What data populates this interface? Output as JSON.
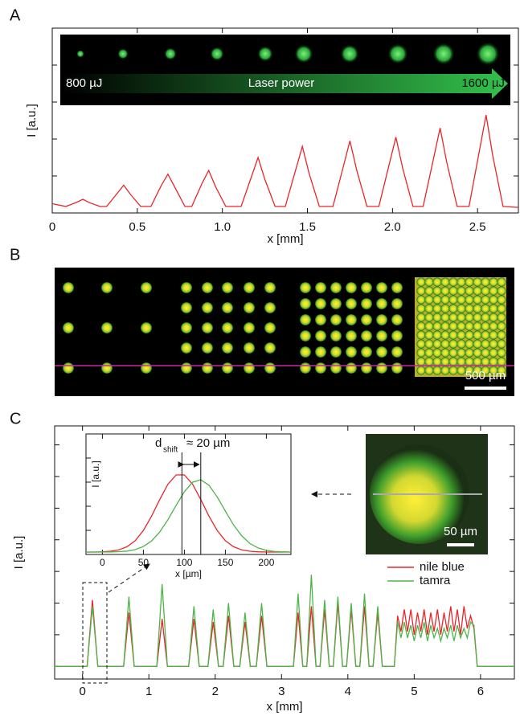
{
  "chart_data": [
    {
      "type": "line",
      "panel": "A",
      "xlabel": "x [mm]",
      "ylabel": "I [a.u.]",
      "image_labels": [
        "800 µJ",
        "Laser power",
        "1600 µJ"
      ],
      "xlim": [
        0,
        2.74
      ],
      "xticks": [
        0,
        0.5,
        {
          "value": 1,
          "label": "1.0"
        },
        1.5,
        {
          "value": 2,
          "label": "2.0"
        },
        2.5
      ],
      "ylim": [
        0,
        10
      ],
      "yticks": [
        0,
        2,
        4,
        6,
        8
      ],
      "color": "#e8262a",
      "x": [
        0,
        0.08,
        0.14,
        0.18,
        0.22,
        0.28,
        0.32,
        0.38,
        0.42,
        0.46,
        0.52,
        0.58,
        0.64,
        0.68,
        0.72,
        0.78,
        0.82,
        0.88,
        0.92,
        0.96,
        1.02,
        1.11,
        1.17,
        1.21,
        1.25,
        1.31,
        1.37,
        1.43,
        1.47,
        1.51,
        1.57,
        1.65,
        1.71,
        1.75,
        1.79,
        1.85,
        1.92,
        1.98,
        2.02,
        2.06,
        2.12,
        2.18,
        2.24,
        2.28,
        2.32,
        2.38,
        2.45,
        2.51,
        2.55,
        2.59,
        2.65,
        2.74
      ],
      "values": [
        0.5,
        0.35,
        0.56,
        0.74,
        0.55,
        0.35,
        0.35,
        1.04,
        1.5,
        1.0,
        0.35,
        0.35,
        1.47,
        2.1,
        1.4,
        0.35,
        0.35,
        1.59,
        2.3,
        1.42,
        0.35,
        0.35,
        1.94,
        3.0,
        1.81,
        0.35,
        0.35,
        2.3,
        3.6,
        2.14,
        0.35,
        0.35,
        2.48,
        3.9,
        2.3,
        0.35,
        0.35,
        2.6,
        4.1,
        2.41,
        0.35,
        0.35,
        2.9,
        4.6,
        2.69,
        0.35,
        0.35,
        3.32,
        5.3,
        3.07,
        0.35,
        0.3
      ]
    },
    {
      "type": "image",
      "panel": "B",
      "scale_bar": "500 µm"
    },
    {
      "type": "line",
      "panel": "C",
      "xlabel": "x [mm]",
      "ylabel": "I [a.u.]",
      "scale_bar": "50 µm",
      "xlim": [
        -0.42,
        6.51
      ],
      "xticks": [
        0,
        1,
        2,
        3,
        4,
        5,
        6
      ],
      "ylim": [
        -0.4,
        7.6
      ],
      "yticks": [
        0,
        1,
        2,
        3,
        4,
        5,
        6,
        7
      ],
      "x": [
        -0.42,
        0.07,
        0.15,
        0.23,
        0.62,
        0.7,
        0.78,
        1.12,
        1.2,
        1.28,
        1.6,
        1.68,
        1.76,
        1.89,
        1.97,
        2.05,
        2.12,
        2.2,
        2.28,
        2.37,
        2.45,
        2.53,
        2.62,
        2.7,
        2.78,
        3.18,
        3.25,
        3.32,
        3.38,
        3.45,
        3.52,
        3.58,
        3.65,
        3.72,
        3.78,
        3.85,
        3.92,
        3.98,
        4.05,
        4.12,
        4.18,
        4.25,
        4.32,
        4.38,
        4.45,
        4.52,
        4.7,
        4.75,
        4.8,
        4.85,
        4.9,
        4.95,
        5.0,
        5.05,
        5.1,
        5.15,
        5.2,
        5.25,
        5.3,
        5.35,
        5.4,
        5.45,
        5.5,
        5.55,
        5.6,
        5.65,
        5.7,
        5.75,
        5.8,
        5.85,
        5.9,
        5.95,
        6.51
      ],
      "series": [
        {
          "name": "nile blue",
          "color": "#e8262a",
          "values": [
            0,
            0,
            2.1,
            0,
            0,
            1.7,
            0,
            0,
            1.5,
            0,
            0,
            1.5,
            0,
            0,
            1.4,
            0,
            0,
            1.6,
            0,
            0,
            1.4,
            0,
            0,
            1.6,
            0,
            0,
            1.7,
            0,
            0,
            1.9,
            0,
            0,
            1.8,
            0,
            0,
            2.0,
            0,
            0,
            1.8,
            0,
            0,
            1.9,
            0,
            0,
            1.7,
            0,
            0,
            1.6,
            1.1,
            1.8,
            1.1,
            1.8,
            1.0,
            1.7,
            1.1,
            1.8,
            1.0,
            1.7,
            1.1,
            1.8,
            1.0,
            1.7,
            1.1,
            1.9,
            1.1,
            1.8,
            1.0,
            1.9,
            1.2,
            1.6,
            1.2,
            0,
            0
          ]
        },
        {
          "name": "tamra",
          "color": "#4cb648",
          "values": [
            0,
            0,
            1.9,
            0,
            0,
            2.2,
            0,
            0,
            2.6,
            0,
            0,
            1.9,
            0,
            0,
            1.8,
            0,
            0,
            2.0,
            0,
            0,
            1.7,
            0,
            0,
            2.0,
            0,
            0,
            2.3,
            0,
            0,
            2.9,
            0,
            0,
            2.1,
            0,
            0,
            2.2,
            0,
            0,
            2.0,
            0,
            0,
            2.3,
            0,
            0,
            1.9,
            0,
            0,
            1.4,
            0.9,
            1.4,
            0.9,
            1.3,
            0.8,
            1.3,
            0.9,
            1.4,
            0.8,
            1.3,
            0.9,
            1.2,
            0.8,
            1.2,
            0.9,
            1.3,
            0.8,
            1.3,
            0.9,
            1.2,
            0.9,
            1.4,
            1.3,
            0,
            0
          ]
        }
      ]
    },
    {
      "type": "line",
      "xlabel": "x [µm]",
      "ylabel": "I [a.u.]",
      "annotations": [
        "d",
        "shift",
        "≈ 20 µm"
      ],
      "markers": [
        97,
        120
      ],
      "xlim": [
        -20,
        230
      ],
      "xticks": [
        0,
        50,
        100,
        150,
        200
      ],
      "ylim": [
        0,
        10
      ],
      "yticks": [
        0,
        2,
        4,
        6,
        8
      ],
      "x": [
        -20,
        -10,
        0,
        10,
        20,
        30,
        40,
        50,
        60,
        70,
        80,
        90,
        100,
        110,
        120,
        130,
        140,
        150,
        160,
        170,
        180,
        190,
        200,
        210,
        220,
        230
      ],
      "series": [
        {
          "color": "#e8262a",
          "values": [
            0.2,
            0.2,
            0.22,
            0.27,
            0.38,
            0.64,
            1.14,
            1.99,
            3.18,
            4.56,
            5.83,
            6.6,
            6.6,
            5.83,
            4.56,
            3.18,
            1.99,
            1.14,
            0.64,
            0.38,
            0.27,
            0.22,
            0.2,
            0.2,
            0.2,
            0.2
          ]
        },
        {
          "color": "#4cb648",
          "values": [
            0.2,
            0.2,
            0.2,
            0.21,
            0.23,
            0.28,
            0.4,
            0.66,
            1.12,
            1.87,
            2.89,
            4.08,
            5.21,
            5.99,
            6.19,
            5.74,
            4.78,
            3.6,
            2.45,
            1.54,
            0.91,
            0.54,
            0.34,
            0.25,
            0.22,
            0.2
          ]
        }
      ]
    }
  ]
}
